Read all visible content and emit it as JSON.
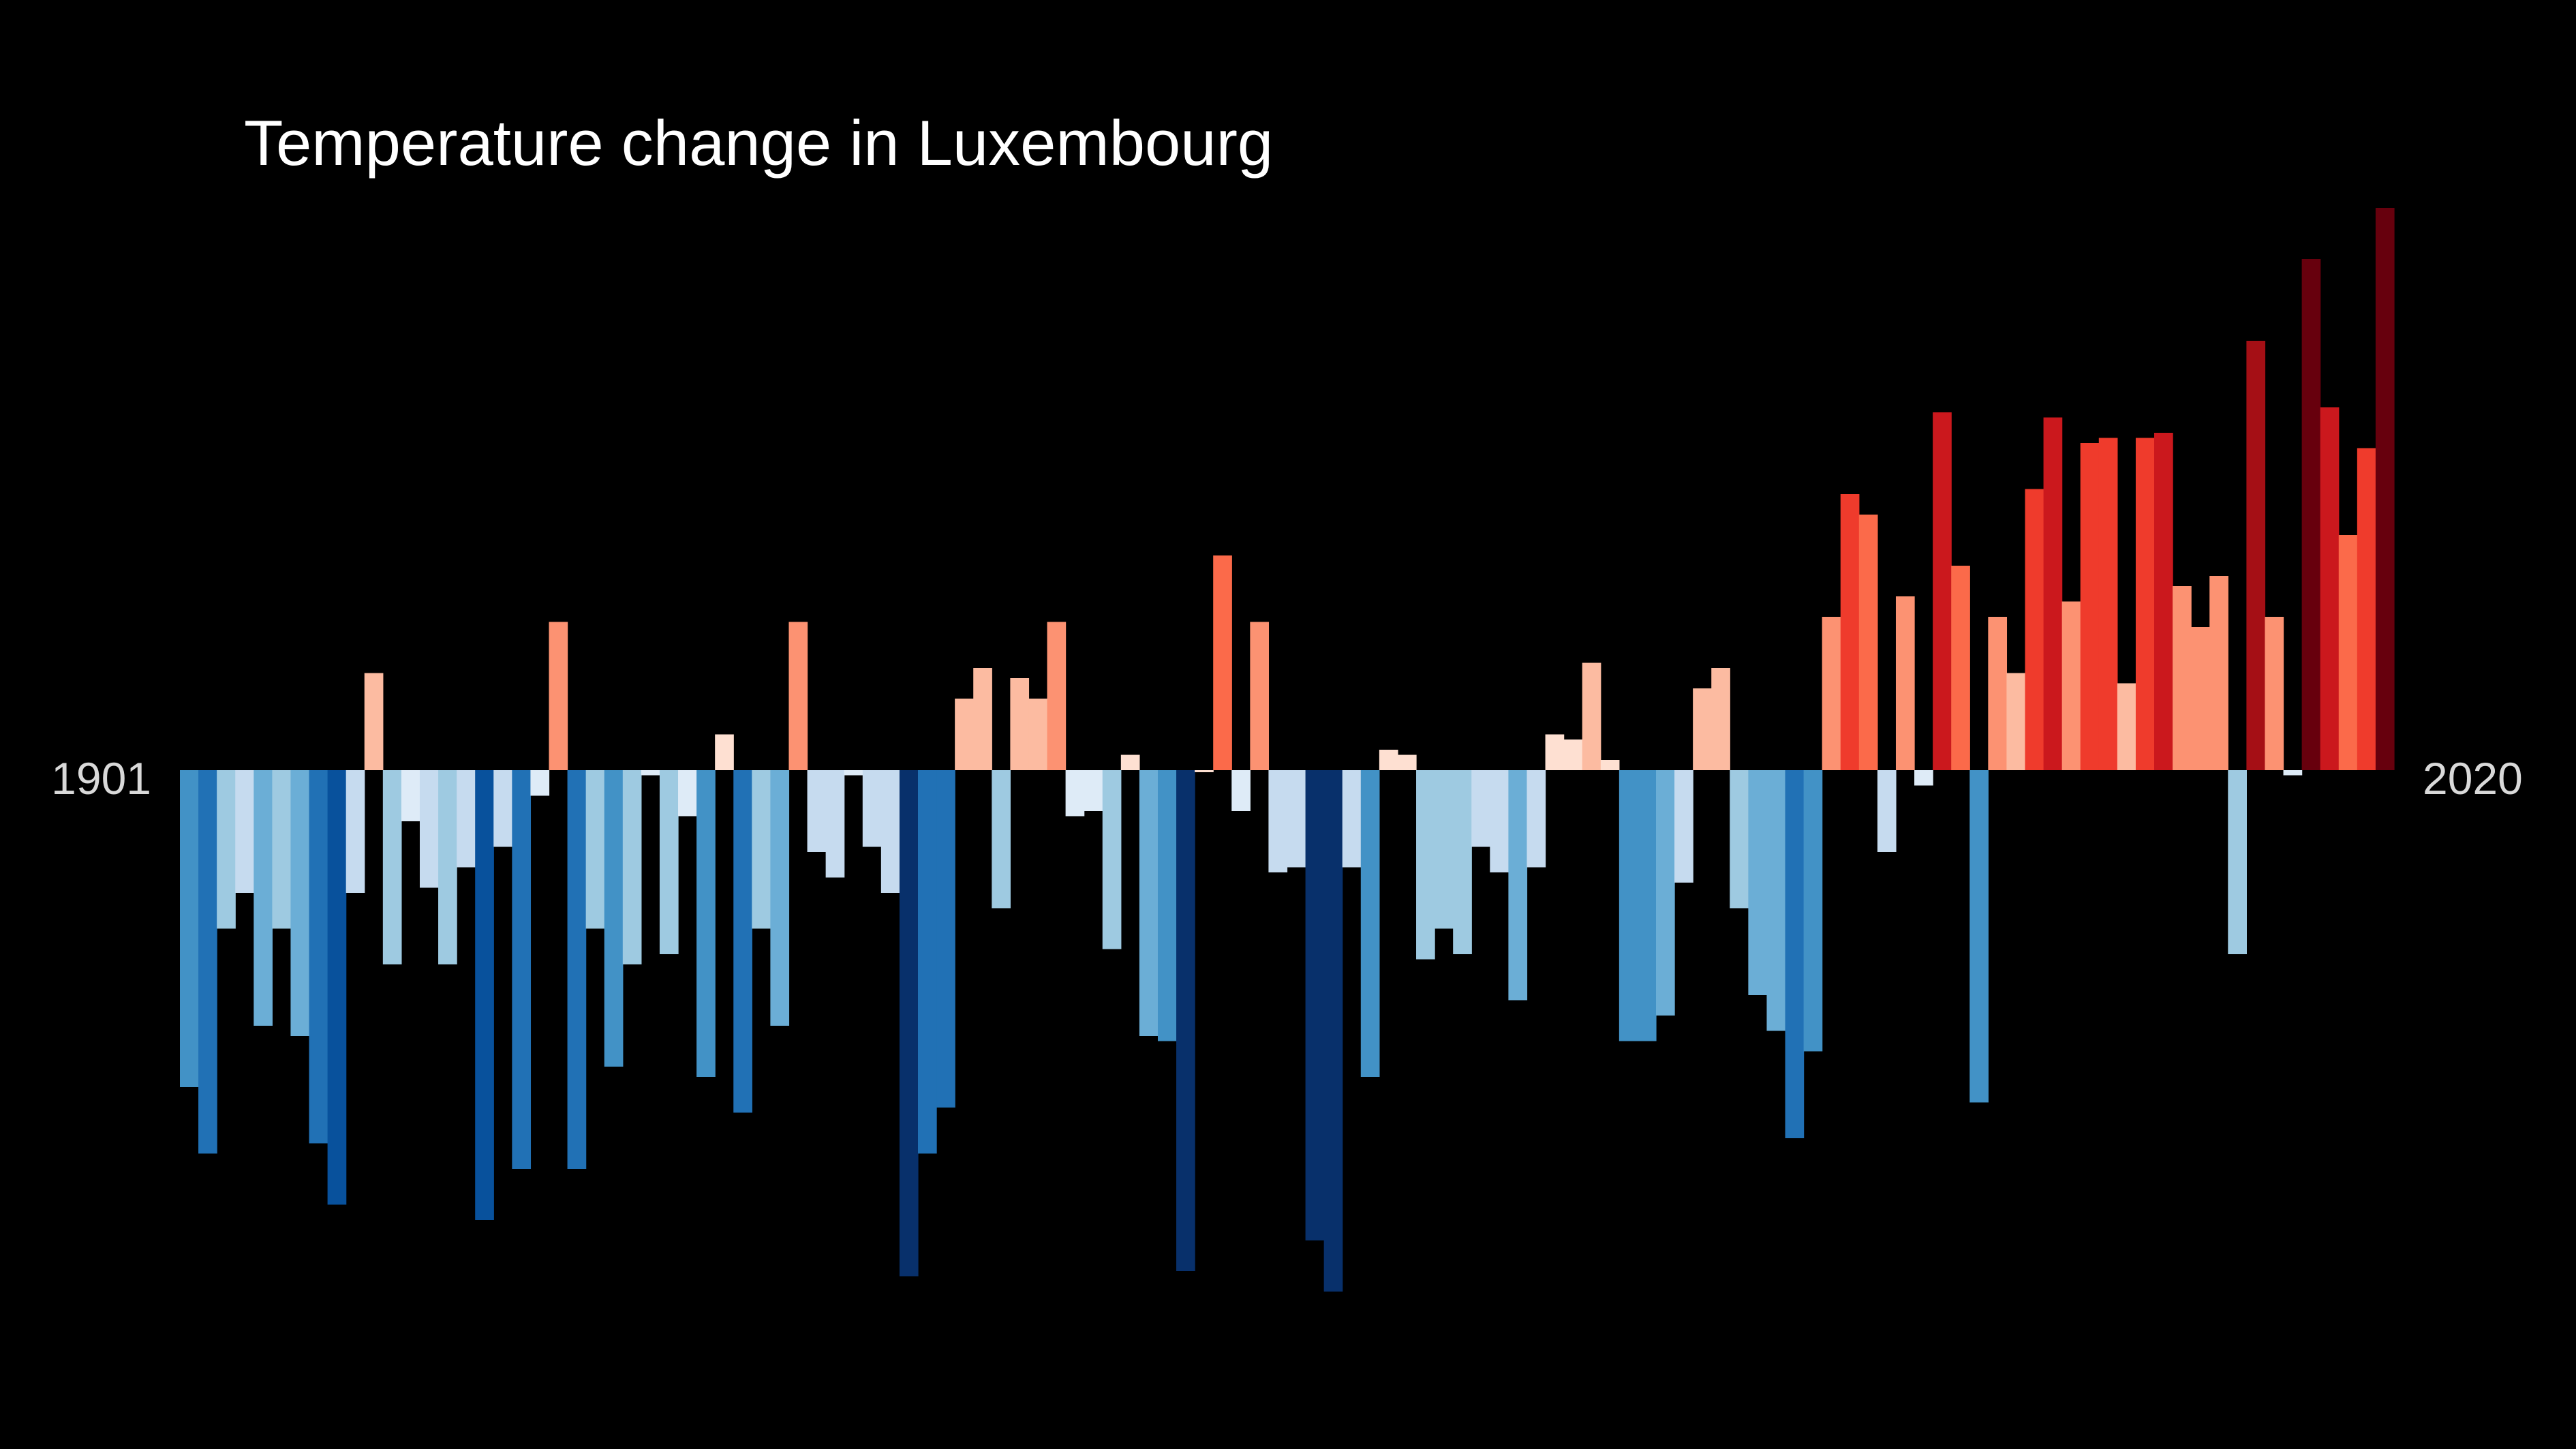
{
  "chart_data": {
    "type": "bar",
    "title": "Temperature change in Luxembourg",
    "start_label": "1901",
    "end_label": "2020",
    "xlabel": "",
    "ylabel": "",
    "categories": [
      1901,
      1902,
      1903,
      1904,
      1905,
      1906,
      1907,
      1908,
      1909,
      1910,
      1911,
      1912,
      1913,
      1914,
      1915,
      1916,
      1917,
      1918,
      1919,
      1920,
      1921,
      1922,
      1923,
      1924,
      1925,
      1926,
      1927,
      1928,
      1929,
      1930,
      1931,
      1932,
      1933,
      1934,
      1935,
      1936,
      1937,
      1938,
      1939,
      1940,
      1941,
      1942,
      1943,
      1944,
      1945,
      1946,
      1947,
      1948,
      1949,
      1950,
      1951,
      1952,
      1953,
      1954,
      1955,
      1956,
      1957,
      1958,
      1959,
      1960,
      1961,
      1962,
      1963,
      1964,
      1965,
      1966,
      1967,
      1968,
      1969,
      1970,
      1971,
      1972,
      1973,
      1974,
      1975,
      1976,
      1977,
      1978,
      1979,
      1980,
      1981,
      1982,
      1983,
      1984,
      1985,
      1986,
      1987,
      1988,
      1989,
      1990,
      1991,
      1992,
      1993,
      1994,
      1995,
      1996,
      1997,
      1998,
      1999,
      2000,
      2001,
      2002,
      2003,
      2004,
      2005,
      2006,
      2007,
      2008,
      2009,
      2010,
      2011,
      2012,
      2013,
      2014,
      2015,
      2016,
      2017,
      2018,
      2019,
      2020
    ],
    "values": [
      -0.62,
      -0.75,
      -0.31,
      -0.24,
      -0.5,
      -0.31,
      -0.52,
      -0.73,
      -0.85,
      -0.24,
      0.19,
      -0.38,
      -0.1,
      -0.23,
      -0.38,
      -0.19,
      -0.88,
      -0.15,
      -0.78,
      -0.05,
      0.29,
      -0.78,
      -0.31,
      -0.58,
      -0.38,
      -0.01,
      -0.36,
      -0.09,
      -0.6,
      0.07,
      -0.67,
      -0.31,
      -0.5,
      0.29,
      -0.16,
      -0.21,
      -0.01,
      -0.15,
      -0.24,
      -0.99,
      -0.75,
      -0.66,
      0.14,
      0.2,
      -0.27,
      0.18,
      0.14,
      0.29,
      -0.09,
      -0.08,
      -0.35,
      0.03,
      -0.52,
      -0.53,
      -0.98,
      0.0,
      0.42,
      -0.08,
      0.29,
      -0.2,
      -0.19,
      -0.92,
      -1.02,
      -0.19,
      -0.6,
      0.04,
      0.03,
      -0.37,
      -0.31,
      -0.36,
      -0.15,
      -0.2,
      -0.45,
      -0.19,
      0.07,
      0.06,
      0.21,
      0.02,
      -0.53,
      -0.53,
      -0.48,
      -0.22,
      0.16,
      0.2,
      -0.27,
      -0.44,
      -0.51,
      -0.72,
      -0.55,
      0.3,
      0.54,
      0.5,
      -0.16,
      0.34,
      -0.03,
      0.7,
      0.4,
      -0.65,
      0.3,
      0.19,
      0.55,
      0.69,
      0.33,
      0.64,
      0.65,
      0.17,
      0.65,
      0.66,
      0.36,
      0.28,
      0.38,
      -0.36,
      0.84,
      0.3,
      -0.01,
      1.0,
      0.71,
      0.46,
      0.63,
      1.1
    ]
  }
}
